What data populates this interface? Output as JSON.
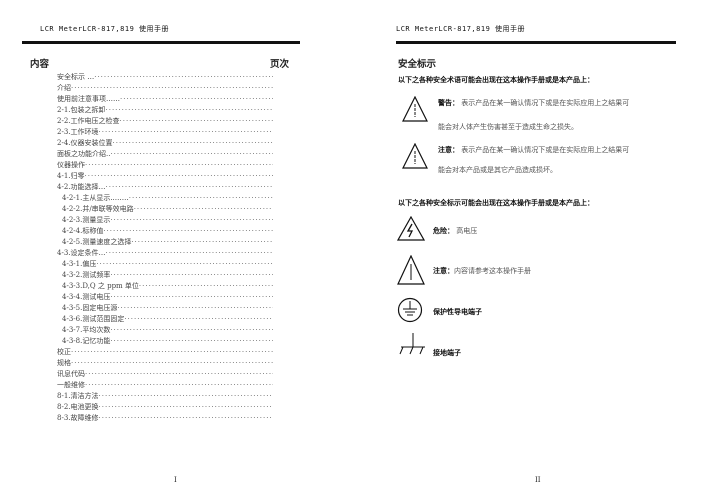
{
  "left_page": {
    "header": "LCR MeterLCR-817,819 使用手册",
    "contents_label": "内容",
    "page_label": "页次",
    "toc": [
      {
        "t": "安全标示 …",
        "l": 1
      },
      {
        "t": "介绍",
        "l": 1
      },
      {
        "t": "使用前注意事项……",
        "l": 1
      },
      {
        "t": "2-1.包装之拆卸",
        "l": 1
      },
      {
        "t": "2-2.工作电压之检查",
        "l": 1
      },
      {
        "t": "2-3.工作环境",
        "l": 1
      },
      {
        "t": "2-4.仪器安装位置",
        "l": 1
      },
      {
        "t": "面板之功能介绍..",
        "l": 1
      },
      {
        "t": "仪器操作",
        "l": 1
      },
      {
        "t": "4-1.归零",
        "l": 1
      },
      {
        "t": "4-2.功能选择…",
        "l": 1
      },
      {
        "t": "4-2-1.主从显示..……",
        "l": 2
      },
      {
        "t": "4-2-2.并/串联等效电路",
        "l": 2
      },
      {
        "t": "4-2-3.测量显示",
        "l": 2
      },
      {
        "t": "4-2-4.标称值",
        "l": 2
      },
      {
        "t": "4-2-5.测量速度之选择",
        "l": 2
      },
      {
        "t": "4-3.设定条件…",
        "l": 1
      },
      {
        "t": "4-3-1.偏压",
        "l": 2
      },
      {
        "t": "4-3-2.测试频率",
        "l": 2
      },
      {
        "t": "4-3-3.D,Q 之 ppm 单位",
        "l": 2
      },
      {
        "t": "4-3-4.测试电压",
        "l": 2
      },
      {
        "t": "4-3-5.固定电压源",
        "l": 2
      },
      {
        "t": "4-3-6.测试范围固定",
        "l": 2
      },
      {
        "t": "4-3-7.平均次数",
        "l": 2
      },
      {
        "t": "4-3-8.记忆功能",
        "l": 2
      },
      {
        "t": "校正",
        "l": 1
      },
      {
        "t": "规格",
        "l": 1
      },
      {
        "t": "讯息代码",
        "l": 1
      },
      {
        "t": "一般维修",
        "l": 1
      },
      {
        "t": "8-1.清洁方法",
        "l": 1
      },
      {
        "t": "8-2.电池更换",
        "l": 1
      },
      {
        "t": "8-3.故障维修",
        "l": 1
      }
    ],
    "page_number": "I"
  },
  "right_page": {
    "header": "LCR MeterLCR-817,819 使用手册",
    "title": "安全标示",
    "intro1": "以下之各种安全术语可能会出现在这本操作手册或是本产品上：",
    "warning_label": "警告：",
    "warning_text1": "表示产品在某一确认情况下或是在实际应用上之结果可",
    "warning_text2": "能会对人体产生伤害甚至于造成生命之损失。",
    "caution_label": "注意：",
    "caution_text1": "表示产品在某一确认情况下或是在实际应用上之结果可",
    "caution_text2": "能会对本产品或是其它产品造成损坏。",
    "intro2": "以下之各种安全标示可能会出现在这本操作手册或是本产品上：",
    "danger_label": "危险：",
    "danger_text": "高电压",
    "attention_label": "注意：",
    "attention_text": "内容请参考这本操作手册",
    "protective_ground": "保护性导电端子",
    "ground": "接地端子",
    "page_number": "II"
  }
}
